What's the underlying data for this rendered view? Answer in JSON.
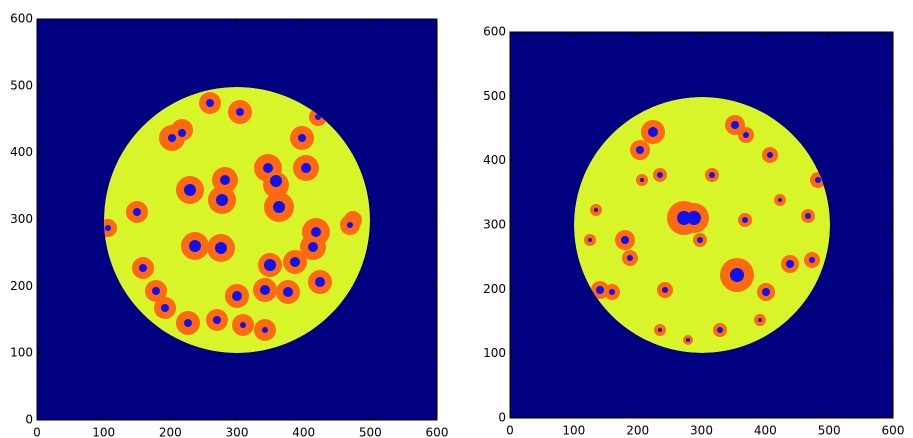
{
  "chart_data": [
    {
      "type": "image",
      "background": "#000080",
      "xlim": [
        0,
        600
      ],
      "ylim": [
        0,
        600
      ],
      "xticks": [
        0,
        100,
        200,
        300,
        400,
        500,
        600
      ],
      "yticks": [
        0,
        100,
        200,
        300,
        400,
        500,
        600
      ]
    },
    {
      "type": "image",
      "background": "#000080",
      "xlim": [
        0,
        600
      ],
      "ylim": [
        0,
        600
      ],
      "xticks": [
        0,
        100,
        200,
        300,
        400,
        500,
        600
      ],
      "yticks": [
        0,
        100,
        200,
        300,
        400,
        500,
        600
      ]
    }
  ]
}
